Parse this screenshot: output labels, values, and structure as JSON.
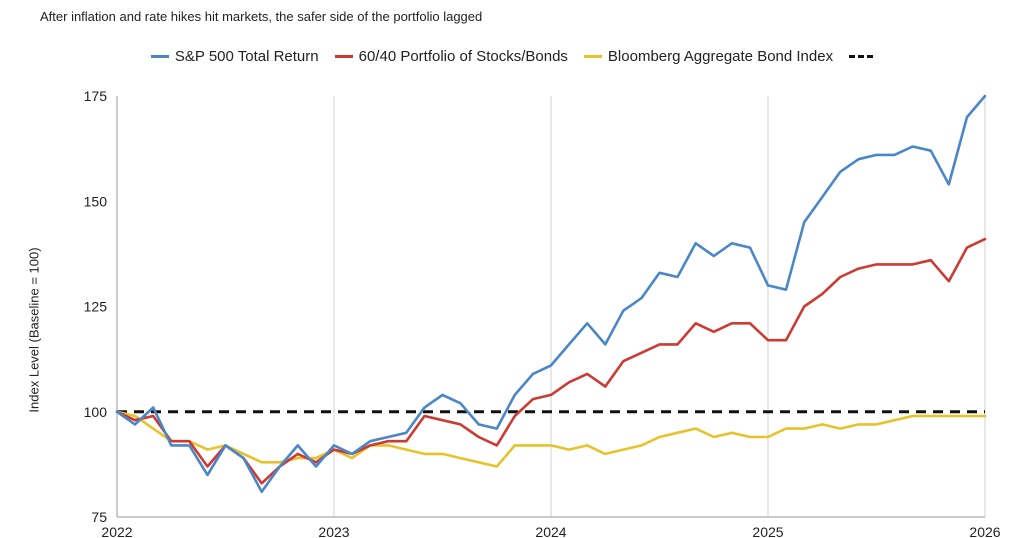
{
  "subtitle": "After inflation and rate hikes hit markets, the safer side of the portfolio lagged",
  "chart_data": {
    "type": "line",
    "ylabel": "Index Level (Baseline = 100)",
    "xlabel": "",
    "xlim": [
      2022,
      2026
    ],
    "ylim": [
      75,
      175
    ],
    "y_ticks": [
      75,
      100,
      125,
      150,
      175
    ],
    "x_ticks": [
      "2022",
      "2023",
      "2024",
      "2025",
      "2026"
    ],
    "grid": "vertical",
    "legend_position": "top",
    "series": [
      {
        "name": "S&P 500 Total Return",
        "color": "#4a86c8",
        "x": [
          2022.0,
          2022.083,
          2022.167,
          2022.25,
          2022.333,
          2022.417,
          2022.5,
          2022.583,
          2022.667,
          2022.75,
          2022.833,
          2022.917,
          2023.0,
          2023.083,
          2023.167,
          2023.25,
          2023.333,
          2023.417,
          2023.5,
          2023.583,
          2023.667,
          2023.75,
          2023.833,
          2023.917,
          2024.0,
          2024.083,
          2024.167,
          2024.25,
          2024.333,
          2024.417,
          2024.5,
          2024.583,
          2024.667,
          2024.75,
          2024.833,
          2024.917,
          2025.0,
          2025.083,
          2025.167,
          2025.25,
          2025.333,
          2025.417,
          2025.5,
          2025.583,
          2025.667,
          2025.75,
          2025.833,
          2025.917,
          2026.0
        ],
        "values": [
          100,
          97,
          101,
          92,
          92,
          85,
          92,
          89,
          81,
          87,
          92,
          87,
          92,
          90,
          93,
          94,
          95,
          101,
          104,
          102,
          97,
          96,
          104,
          109,
          111,
          116,
          121,
          116,
          124,
          127,
          133,
          132,
          140,
          137,
          140,
          139,
          130,
          129,
          145,
          151,
          157,
          160,
          161,
          161,
          163,
          162,
          154,
          170,
          175
        ]
      },
      {
        "name": "60/40 Portfolio of Stocks/Bonds",
        "color": "#cc3b33",
        "x": [
          2022.0,
          2022.083,
          2022.167,
          2022.25,
          2022.333,
          2022.417,
          2022.5,
          2022.583,
          2022.667,
          2022.75,
          2022.833,
          2022.917,
          2023.0,
          2023.083,
          2023.167,
          2023.25,
          2023.333,
          2023.417,
          2023.5,
          2023.583,
          2023.667,
          2023.75,
          2023.833,
          2023.917,
          2024.0,
          2024.083,
          2024.167,
          2024.25,
          2024.333,
          2024.417,
          2024.5,
          2024.583,
          2024.667,
          2024.75,
          2024.833,
          2024.917,
          2025.0,
          2025.083,
          2025.167,
          2025.25,
          2025.333,
          2025.417,
          2025.5,
          2025.583,
          2025.667,
          2025.75,
          2025.833,
          2025.917,
          2026.0
        ],
        "values": [
          100,
          98,
          99,
          93,
          93,
          87,
          92,
          89,
          83,
          87,
          90,
          88,
          91,
          90,
          92,
          93,
          93,
          99,
          98,
          97,
          94,
          92,
          99,
          103,
          104,
          107,
          109,
          106,
          112,
          114,
          116,
          116,
          121,
          119,
          121,
          121,
          117,
          117,
          125,
          128,
          132,
          134,
          135,
          135,
          135,
          136,
          131,
          139,
          141
        ]
      },
      {
        "name": "Bloomberg Aggregate Bond Index",
        "color": "#e7c22b",
        "x": [
          2022.0,
          2022.083,
          2022.167,
          2022.25,
          2022.333,
          2022.417,
          2022.5,
          2022.583,
          2022.667,
          2022.75,
          2022.833,
          2022.917,
          2023.0,
          2023.083,
          2023.167,
          2023.25,
          2023.333,
          2023.417,
          2023.5,
          2023.583,
          2023.667,
          2023.75,
          2023.833,
          2023.917,
          2024.0,
          2024.083,
          2024.167,
          2024.25,
          2024.333,
          2024.417,
          2024.5,
          2024.583,
          2024.667,
          2024.75,
          2024.833,
          2024.917,
          2025.0,
          2025.083,
          2025.167,
          2025.25,
          2025.333,
          2025.417,
          2025.5,
          2025.583,
          2025.667,
          2025.75,
          2025.833,
          2025.917,
          2026.0
        ],
        "values": [
          100,
          99,
          96,
          93,
          93,
          91,
          92,
          90,
          88,
          88,
          89,
          89,
          91,
          89,
          92,
          92,
          91,
          90,
          90,
          89,
          88,
          87,
          92,
          92,
          92,
          91,
          92,
          90,
          91,
          92,
          94,
          95,
          96,
          94,
          95,
          94,
          94,
          96,
          96,
          97,
          96,
          97,
          97,
          98,
          99,
          99,
          99,
          99,
          99
        ]
      },
      {
        "name": "",
        "color": "#111111",
        "dashed": true,
        "x": [
          2022.0,
          2026.0
        ],
        "values": [
          100,
          100
        ]
      }
    ]
  }
}
